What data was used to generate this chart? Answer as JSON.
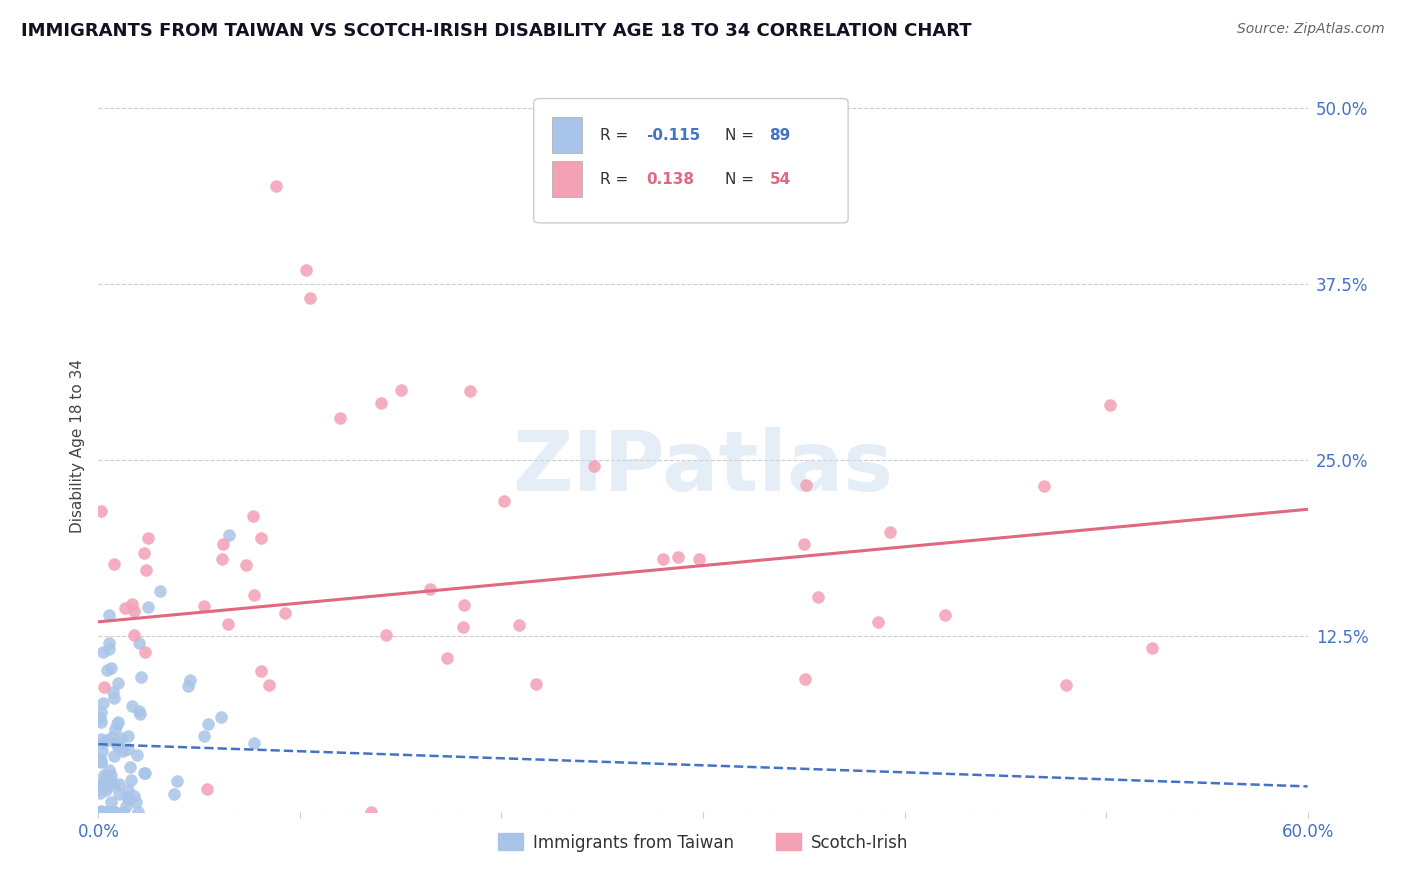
{
  "title": "IMMIGRANTS FROM TAIWAN VS SCOTCH-IRISH DISABILITY AGE 18 TO 34 CORRELATION CHART",
  "source": "Source: ZipAtlas.com",
  "ylabel": "Disability Age 18 to 34",
  "legend1_label": "Immigrants from Taiwan",
  "legend2_label": "Scotch-Irish",
  "R_taiwan": -0.115,
  "N_taiwan": 89,
  "R_scotch": 0.138,
  "N_scotch": 54,
  "taiwan_color": "#a8c4e8",
  "scotch_color": "#f4a0b5",
  "taiwan_line_color": "#4472c4",
  "scotch_line_color": "#e06880",
  "background_color": "#ffffff",
  "watermark_text": "ZIPatlas",
  "xlim": [
    0.0,
    0.6
  ],
  "ylim": [
    0.0,
    0.52
  ],
  "ytick_vals": [
    0.0,
    0.125,
    0.25,
    0.375,
    0.5
  ],
  "ytick_labels_right": [
    "",
    "12.5%",
    "25.0%",
    "37.5%",
    "50.0%"
  ],
  "xtick_label_left": "0.0%",
  "xtick_label_right": "60.0%",
  "taiwan_line_x0": 0.0,
  "taiwan_line_y0": 0.048,
  "taiwan_line_x1": 0.6,
  "taiwan_line_y1": 0.018,
  "scotch_line_x0": 0.0,
  "scotch_line_y0": 0.135,
  "scotch_line_x1": 0.6,
  "scotch_line_y1": 0.215
}
